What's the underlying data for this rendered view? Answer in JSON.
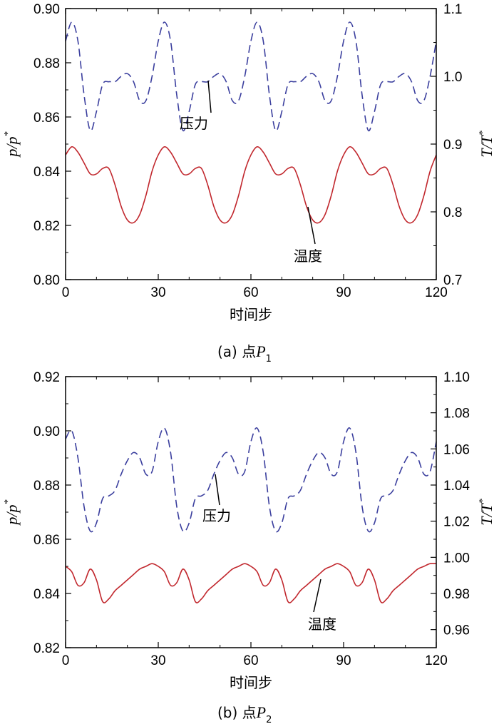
{
  "colors": {
    "pressure": "#3b3f9e",
    "temperature": "#c1272d",
    "axis": "#000000"
  },
  "chart_data": [
    {
      "type": "line",
      "caption": "(a) 点P1",
      "caption_prefix": "(a) 点",
      "caption_var": "P",
      "caption_sub": "1",
      "xlabel": "时间步",
      "ylabel_left": "p/p*",
      "ylabel_right": "T/T*",
      "xlim": [
        0,
        120
      ],
      "ylim_left": [
        0.8,
        0.9
      ],
      "ylim_right": [
        0.7,
        1.1
      ],
      "x_ticks": [
        "0",
        "30",
        "60",
        "90",
        "120"
      ],
      "y_left_ticks": [
        "0.80",
        "0.82",
        "0.84",
        "0.86",
        "0.88",
        "0.90"
      ],
      "y_right_ticks": [
        "0.7",
        "0.8",
        "0.9",
        "1.0",
        "1.1"
      ],
      "series": [
        {
          "name": "压力",
          "axis": "left",
          "style": "dashed",
          "x": [
            0,
            2,
            4,
            6,
            8,
            10,
            12,
            14,
            16,
            18,
            20,
            22,
            24,
            26,
            28,
            30,
            32,
            34,
            36,
            38,
            40,
            42,
            44,
            46,
            48,
            50,
            52,
            54,
            56,
            58,
            60,
            62,
            64,
            66,
            68,
            70,
            72,
            74,
            76,
            78,
            80,
            82,
            84,
            86,
            88,
            90,
            92,
            94,
            96,
            98,
            100,
            102,
            104,
            106,
            108,
            110,
            112,
            114,
            116,
            118,
            120
          ],
          "y": [
            0.888,
            0.895,
            0.888,
            0.868,
            0.855,
            0.862,
            0.872,
            0.873,
            0.873,
            0.875,
            0.876,
            0.873,
            0.866,
            0.866,
            0.875,
            0.888,
            0.895,
            0.888,
            0.868,
            0.855,
            0.862,
            0.872,
            0.873,
            0.873,
            0.875,
            0.876,
            0.873,
            0.866,
            0.866,
            0.875,
            0.888,
            0.895,
            0.888,
            0.868,
            0.855,
            0.862,
            0.872,
            0.873,
            0.873,
            0.875,
            0.876,
            0.873,
            0.866,
            0.866,
            0.875,
            0.888,
            0.895,
            0.888,
            0.868,
            0.855,
            0.862,
            0.872,
            0.873,
            0.873,
            0.875,
            0.876,
            0.873,
            0.866,
            0.866,
            0.875,
            0.888
          ]
        },
        {
          "name": "温度",
          "axis": "left",
          "style": "solid",
          "x": [
            0,
            2,
            4,
            6,
            8,
            10,
            12,
            14,
            16,
            18,
            20,
            22,
            24,
            26,
            28,
            30,
            32,
            34,
            36,
            38,
            40,
            42,
            44,
            46,
            48,
            50,
            52,
            54,
            56,
            58,
            60,
            62,
            64,
            66,
            68,
            70,
            72,
            74,
            76,
            78,
            80,
            82,
            84,
            86,
            88,
            90,
            92,
            94,
            96,
            98,
            100,
            102,
            104,
            106,
            108,
            110,
            112,
            114,
            116,
            118,
            120
          ],
          "y": [
            0.846,
            0.849,
            0.847,
            0.843,
            0.839,
            0.839,
            0.841,
            0.841,
            0.835,
            0.827,
            0.822,
            0.821,
            0.824,
            0.831,
            0.84,
            0.846,
            0.849,
            0.847,
            0.843,
            0.839,
            0.839,
            0.841,
            0.841,
            0.835,
            0.827,
            0.822,
            0.821,
            0.824,
            0.831,
            0.84,
            0.846,
            0.849,
            0.847,
            0.843,
            0.839,
            0.839,
            0.841,
            0.841,
            0.835,
            0.827,
            0.822,
            0.821,
            0.824,
            0.831,
            0.84,
            0.846,
            0.849,
            0.847,
            0.843,
            0.839,
            0.839,
            0.841,
            0.841,
            0.835,
            0.827,
            0.822,
            0.821,
            0.824,
            0.831,
            0.84,
            0.846
          ]
        }
      ]
    },
    {
      "type": "line",
      "caption": "(b) 点P2",
      "caption_prefix": "(b) 点",
      "caption_var": "P",
      "caption_sub": "2",
      "xlabel": "时间步",
      "ylabel_left": "p/p*",
      "ylabel_right": "T/T*",
      "xlim": [
        0,
        120
      ],
      "ylim_left": [
        0.82,
        0.92
      ],
      "ylim_right": [
        0.95,
        1.1
      ],
      "x_ticks": [
        "0",
        "30",
        "60",
        "90",
        "120"
      ],
      "y_left_ticks": [
        "0.82",
        "0.84",
        "0.86",
        "0.88",
        "0.90",
        "0.92"
      ],
      "y_right_ticks": [
        "0.96",
        "0.98",
        "1.00",
        "1.02",
        "1.04",
        "1.06",
        "1.08",
        "1.10"
      ],
      "series": [
        {
          "name": "压力",
          "axis": "left",
          "style": "dashed",
          "x": [
            0,
            2,
            4,
            6,
            8,
            10,
            12,
            14,
            16,
            18,
            20,
            22,
            24,
            26,
            28,
            30,
            32,
            34,
            36,
            38,
            40,
            42,
            44,
            46,
            48,
            50,
            52,
            54,
            56,
            58,
            60,
            62,
            64,
            66,
            68,
            70,
            72,
            74,
            76,
            78,
            80,
            82,
            84,
            86,
            88,
            90,
            92,
            94,
            96,
            98,
            100,
            102,
            104,
            106,
            108,
            110,
            112,
            114,
            116,
            118,
            120
          ],
          "y": [
            0.897,
            0.9,
            0.89,
            0.872,
            0.863,
            0.866,
            0.875,
            0.876,
            0.878,
            0.884,
            0.889,
            0.892,
            0.89,
            0.884,
            0.885,
            0.896,
            0.901,
            0.892,
            0.872,
            0.863,
            0.866,
            0.875,
            0.876,
            0.878,
            0.884,
            0.889,
            0.892,
            0.89,
            0.884,
            0.885,
            0.896,
            0.901,
            0.892,
            0.872,
            0.863,
            0.866,
            0.875,
            0.876,
            0.878,
            0.884,
            0.889,
            0.892,
            0.89,
            0.884,
            0.885,
            0.896,
            0.901,
            0.892,
            0.872,
            0.863,
            0.866,
            0.875,
            0.876,
            0.878,
            0.884,
            0.889,
            0.892,
            0.89,
            0.884,
            0.885,
            0.896
          ]
        },
        {
          "name": "温度",
          "axis": "left",
          "style": "solid",
          "x": [
            0,
            2,
            4,
            6,
            8,
            10,
            12,
            14,
            16,
            18,
            20,
            22,
            24,
            26,
            28,
            30,
            32,
            34,
            36,
            38,
            40,
            42,
            44,
            46,
            48,
            50,
            52,
            54,
            56,
            58,
            60,
            62,
            64,
            66,
            68,
            70,
            72,
            74,
            76,
            78,
            80,
            82,
            84,
            86,
            88,
            90,
            92,
            94,
            96,
            98,
            100,
            102,
            104,
            106,
            108,
            110,
            112,
            114,
            116,
            118,
            120
          ],
          "y": [
            0.85,
            0.848,
            0.843,
            0.844,
            0.849,
            0.845,
            0.837,
            0.838,
            0.841,
            0.843,
            0.845,
            0.847,
            0.849,
            0.85,
            0.851,
            0.85,
            0.848,
            0.843,
            0.844,
            0.849,
            0.845,
            0.837,
            0.838,
            0.841,
            0.843,
            0.845,
            0.847,
            0.849,
            0.85,
            0.851,
            0.85,
            0.848,
            0.843,
            0.844,
            0.849,
            0.845,
            0.837,
            0.838,
            0.841,
            0.843,
            0.845,
            0.847,
            0.849,
            0.85,
            0.851,
            0.85,
            0.848,
            0.843,
            0.844,
            0.849,
            0.845,
            0.837,
            0.838,
            0.841,
            0.843,
            0.845,
            0.847,
            0.849,
            0.85,
            0.851,
            0.851
          ]
        }
      ]
    }
  ]
}
